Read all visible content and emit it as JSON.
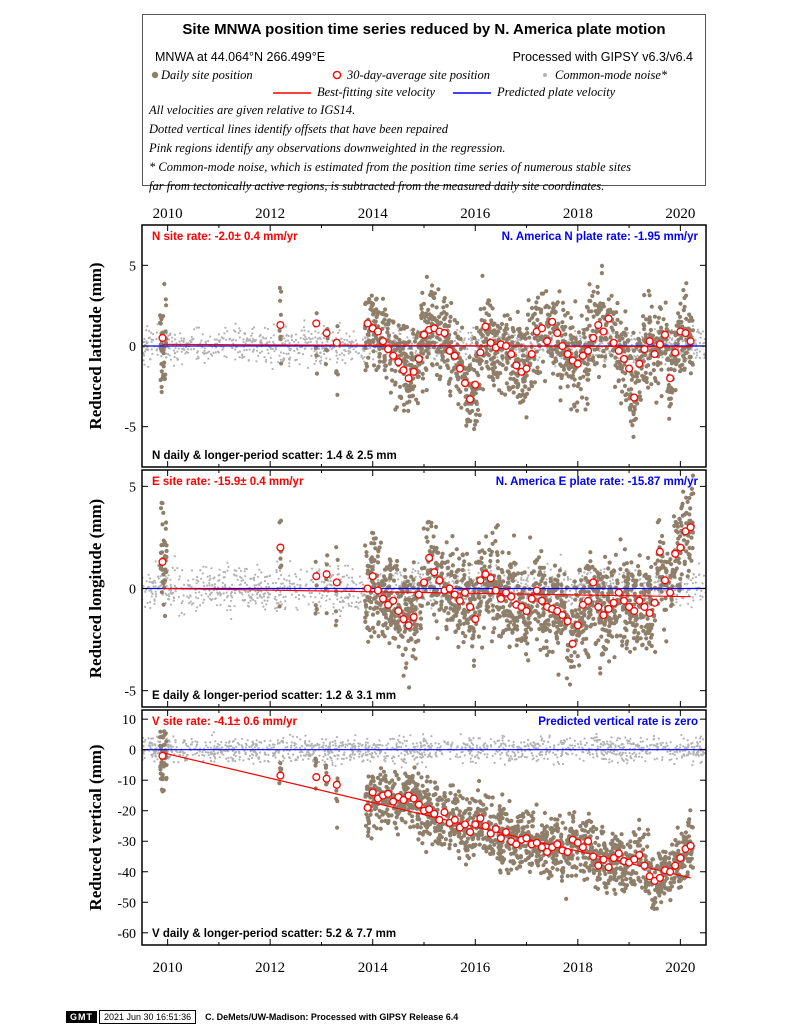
{
  "header": {
    "title": "Site MNWA position time series reduced by N. America plate motion",
    "site_location": "MNWA at 44.064°N 266.499°E",
    "processing": "Processed with GIPSY v6.3/v6.4"
  },
  "legend": {
    "daily": "Daily site position",
    "avg": "30-day-average site position",
    "noise": "Common-mode noise*",
    "fit": "Best-fitting site velocity",
    "predicted": "Predicted plate velocity"
  },
  "notes": [
    "All velocities are given relative to IGS14.",
    "Dotted vertical lines identify offsets that have been repaired",
    "Pink regions identify any observations downweighted in the regression.",
    "* Common-mode noise, which is estimated from the position time series of numerous stable sites",
    "far from tectonically active regions, is subtracted from the measured daily site coordinates."
  ],
  "colors": {
    "daily": "#8f7f6a",
    "noise": "#b3b3b3",
    "fit": "#ff0000",
    "predicted": "#0000ff",
    "avg_edge": "#ff0000"
  },
  "footer": {
    "logo": "GMT",
    "timestamp": "2021 Jun 30 16:51:36",
    "credit": "C. DeMets/UW-Madison: Processed with GIPSY Release 6.4"
  },
  "chart_data": [
    {
      "type": "scatter",
      "component": "N",
      "ylabel": "Reduced latitude (mm)",
      "xlim": [
        2009.5,
        2020.5
      ],
      "ylim": [
        -7.5,
        7.5
      ],
      "x_ticks": [
        2010,
        2012,
        2014,
        2016,
        2018,
        2020
      ],
      "y_ticks": [
        -5,
        0,
        5
      ],
      "site_rate": "N site rate:  -2.0± 0.4 mm/yr",
      "plate_rate": "N. America N plate rate: -1.95 mm/yr",
      "scatter": "N daily & longer-period scatter:   1.4 &   2.5 mm",
      "fit": {
        "x": [
          2009.9,
          2020.2
        ],
        "y": [
          0.1,
          -0.05
        ]
      },
      "predicted": {
        "y": 0
      },
      "daily_spread": 1.4,
      "averages": [
        [
          2009.9,
          0.5
        ],
        [
          2012.2,
          1.3
        ],
        [
          2012.9,
          1.4
        ],
        [
          2013.1,
          0.8
        ],
        [
          2013.3,
          0.2
        ],
        [
          2013.9,
          1.4
        ],
        [
          2014.0,
          1.1
        ],
        [
          2014.1,
          0.9
        ],
        [
          2014.2,
          0.3
        ],
        [
          2014.3,
          -0.2
        ],
        [
          2014.4,
          -0.6
        ],
        [
          2014.5,
          -1.0
        ],
        [
          2014.6,
          -1.5
        ],
        [
          2014.7,
          -2.0
        ],
        [
          2014.8,
          -1.6
        ],
        [
          2014.9,
          -0.8
        ],
        [
          2015.0,
          0.7
        ],
        [
          2015.1,
          1.0
        ],
        [
          2015.2,
          1.1
        ],
        [
          2015.3,
          0.9
        ],
        [
          2015.4,
          0.8
        ],
        [
          2015.5,
          -0.3
        ],
        [
          2015.6,
          -0.6
        ],
        [
          2015.7,
          -1.4
        ],
        [
          2015.8,
          -2.3
        ],
        [
          2015.9,
          -3.3
        ],
        [
          2016.0,
          -2.4
        ],
        [
          2016.1,
          -0.4
        ],
        [
          2016.2,
          1.2
        ],
        [
          2016.3,
          0.2
        ],
        [
          2016.4,
          -0.1
        ],
        [
          2016.5,
          0.1
        ],
        [
          2016.6,
          0.0
        ],
        [
          2016.7,
          -0.5
        ],
        [
          2016.8,
          -1.2
        ],
        [
          2016.9,
          -1.6
        ],
        [
          2017.0,
          -1.4
        ],
        [
          2017.1,
          -0.5
        ],
        [
          2017.2,
          0.9
        ],
        [
          2017.3,
          1.1
        ],
        [
          2017.4,
          0.3
        ],
        [
          2017.5,
          1.5
        ],
        [
          2017.6,
          0.8
        ],
        [
          2017.7,
          0.0
        ],
        [
          2017.8,
          -0.5
        ],
        [
          2017.9,
          -0.9
        ],
        [
          2018.0,
          -1.1
        ],
        [
          2018.1,
          -0.6
        ],
        [
          2018.2,
          -0.3
        ],
        [
          2018.3,
          0.5
        ],
        [
          2018.4,
          1.3
        ],
        [
          2018.5,
          0.9
        ],
        [
          2018.6,
          1.7
        ],
        [
          2018.7,
          0.2
        ],
        [
          2018.8,
          -0.3
        ],
        [
          2018.9,
          -0.8
        ],
        [
          2019.0,
          -1.4
        ],
        [
          2019.1,
          -3.2
        ],
        [
          2019.2,
          -1.1
        ],
        [
          2019.3,
          -0.2
        ],
        [
          2019.4,
          0.3
        ],
        [
          2019.5,
          -0.5
        ],
        [
          2019.6,
          0.1
        ],
        [
          2019.7,
          0.7
        ],
        [
          2019.8,
          -2.0
        ],
        [
          2019.9,
          -0.4
        ],
        [
          2020.0,
          0.9
        ],
        [
          2020.1,
          0.8
        ],
        [
          2020.2,
          0.3
        ]
      ]
    },
    {
      "type": "scatter",
      "component": "E",
      "ylabel": "Reduced longitude (mm)",
      "xlim": [
        2009.5,
        2020.5
      ],
      "ylim": [
        -5.8,
        5.8
      ],
      "x_ticks": [
        2010,
        2012,
        2014,
        2016,
        2018,
        2020
      ],
      "y_ticks": [
        -5,
        0,
        5
      ],
      "site_rate": "E site rate: -15.9± 0.4 mm/yr",
      "plate_rate": "N. America E plate rate: -15.87 mm/yr",
      "scatter": "E daily & longer-period scatter:   1.2 &   3.1 mm",
      "fit": {
        "x": [
          2009.9,
          2020.2
        ],
        "y": [
          0.0,
          -0.4
        ]
      },
      "predicted": {
        "y": 0
      },
      "daily_spread": 1.2,
      "averages": [
        [
          2009.9,
          1.3
        ],
        [
          2012.2,
          2.0
        ],
        [
          2012.9,
          0.6
        ],
        [
          2013.1,
          0.7
        ],
        [
          2013.3,
          0.3
        ],
        [
          2013.9,
          0.0
        ],
        [
          2014.0,
          0.6
        ],
        [
          2014.1,
          -0.1
        ],
        [
          2014.2,
          -0.5
        ],
        [
          2014.3,
          -0.8
        ],
        [
          2014.4,
          -0.6
        ],
        [
          2014.5,
          -1.1
        ],
        [
          2014.6,
          -1.5
        ],
        [
          2014.7,
          -1.8
        ],
        [
          2014.8,
          -1.4
        ],
        [
          2014.9,
          -0.3
        ],
        [
          2015.0,
          0.3
        ],
        [
          2015.1,
          1.5
        ],
        [
          2015.2,
          0.8
        ],
        [
          2015.3,
          0.4
        ],
        [
          2015.4,
          -0.1
        ],
        [
          2015.5,
          0.0
        ],
        [
          2015.6,
          -0.3
        ],
        [
          2015.7,
          -0.6
        ],
        [
          2015.8,
          -0.2
        ],
        [
          2015.9,
          -0.9
        ],
        [
          2016.0,
          -1.5
        ],
        [
          2016.1,
          0.4
        ],
        [
          2016.2,
          0.7
        ],
        [
          2016.3,
          0.5
        ],
        [
          2016.4,
          -0.1
        ],
        [
          2016.5,
          -0.5
        ],
        [
          2016.6,
          -0.2
        ],
        [
          2016.7,
          -0.4
        ],
        [
          2016.8,
          -0.8
        ],
        [
          2016.9,
          -0.9
        ],
        [
          2017.0,
          -1.1
        ],
        [
          2017.1,
          -0.5
        ],
        [
          2017.2,
          -0.1
        ],
        [
          2017.3,
          -0.6
        ],
        [
          2017.4,
          -0.9
        ],
        [
          2017.5,
          -1.0
        ],
        [
          2017.6,
          -1.1
        ],
        [
          2017.7,
          -1.3
        ],
        [
          2017.8,
          -1.6
        ],
        [
          2017.9,
          -2.7
        ],
        [
          2018.0,
          -1.8
        ],
        [
          2018.1,
          -0.8
        ],
        [
          2018.2,
          -0.6
        ],
        [
          2018.3,
          0.3
        ],
        [
          2018.4,
          -0.9
        ],
        [
          2018.5,
          -1.3
        ],
        [
          2018.6,
          -1.0
        ],
        [
          2018.7,
          -0.7
        ],
        [
          2018.8,
          -0.2
        ],
        [
          2018.9,
          -0.6
        ],
        [
          2019.0,
          -0.9
        ],
        [
          2019.1,
          -1.1
        ],
        [
          2019.2,
          -0.6
        ],
        [
          2019.3,
          -0.9
        ],
        [
          2019.4,
          -1.2
        ],
        [
          2019.5,
          -0.7
        ],
        [
          2019.6,
          1.8
        ],
        [
          2019.7,
          0.4
        ],
        [
          2019.8,
          -0.2
        ],
        [
          2019.9,
          1.7
        ],
        [
          2020.0,
          2.0
        ],
        [
          2020.1,
          2.8
        ],
        [
          2020.2,
          3.0
        ]
      ]
    },
    {
      "type": "scatter",
      "component": "V",
      "ylabel": "Reduced vertical (mm)",
      "xlim": [
        2009.5,
        2020.5
      ],
      "ylim": [
        -64,
        13
      ],
      "x_ticks": [
        2010,
        2012,
        2014,
        2016,
        2018,
        2020
      ],
      "y_ticks": [
        -60,
        -50,
        -40,
        -30,
        -20,
        -10,
        0,
        10
      ],
      "site_rate": "V site rate:  -4.1± 0.6 mm/yr",
      "plate_rate": "Predicted vertical rate is zero",
      "scatter": "V daily & longer-period scatter:   5.2 &   7.7 mm",
      "fit": {
        "x": [
          2009.9,
          2020.2
        ],
        "y": [
          -1.0,
          -42.0
        ]
      },
      "predicted": {
        "y": 0
      },
      "daily_spread": 5.2,
      "averages": [
        [
          2009.9,
          -2.0
        ],
        [
          2012.2,
          -8.5
        ],
        [
          2012.9,
          -9.0
        ],
        [
          2013.1,
          -9.5
        ],
        [
          2013.3,
          -11.5
        ],
        [
          2013.9,
          -19.0
        ],
        [
          2014.0,
          -14.0
        ],
        [
          2014.1,
          -16.0
        ],
        [
          2014.2,
          -15.0
        ],
        [
          2014.3,
          -14.5
        ],
        [
          2014.4,
          -17.0
        ],
        [
          2014.5,
          -15.5
        ],
        [
          2014.6,
          -16.5
        ],
        [
          2014.7,
          -15.0
        ],
        [
          2014.8,
          -16.0
        ],
        [
          2014.9,
          -18.0
        ],
        [
          2015.0,
          -20.0
        ],
        [
          2015.1,
          -19.5
        ],
        [
          2015.2,
          -21.0
        ],
        [
          2015.3,
          -23.0
        ],
        [
          2015.4,
          -20.5
        ],
        [
          2015.5,
          -24.0
        ],
        [
          2015.6,
          -23.0
        ],
        [
          2015.7,
          -25.5
        ],
        [
          2015.8,
          -24.5
        ],
        [
          2015.9,
          -27.0
        ],
        [
          2016.0,
          -24.5
        ],
        [
          2016.1,
          -22.5
        ],
        [
          2016.2,
          -25.0
        ],
        [
          2016.3,
          -27.5
        ],
        [
          2016.4,
          -26.0
        ],
        [
          2016.5,
          -29.0
        ],
        [
          2016.6,
          -27.0
        ],
        [
          2016.7,
          -30.0
        ],
        [
          2016.8,
          -31.0
        ],
        [
          2016.9,
          -29.5
        ],
        [
          2017.0,
          -29.0
        ],
        [
          2017.1,
          -31.0
        ],
        [
          2017.2,
          -30.5
        ],
        [
          2017.3,
          -32.0
        ],
        [
          2017.4,
          -33.5
        ],
        [
          2017.5,
          -32.0
        ],
        [
          2017.6,
          -31.0
        ],
        [
          2017.7,
          -33.0
        ],
        [
          2017.8,
          -33.5
        ],
        [
          2017.9,
          -29.5
        ],
        [
          2018.0,
          -30.5
        ],
        [
          2018.1,
          -32.0
        ],
        [
          2018.2,
          -30.0
        ],
        [
          2018.3,
          -35.0
        ],
        [
          2018.4,
          -38.0
        ],
        [
          2018.5,
          -36.0
        ],
        [
          2018.6,
          -38.5
        ],
        [
          2018.7,
          -35.5
        ],
        [
          2018.8,
          -34.0
        ],
        [
          2018.9,
          -36.5
        ],
        [
          2019.0,
          -37.0
        ],
        [
          2019.1,
          -36.0
        ],
        [
          2019.2,
          -34.5
        ],
        [
          2019.3,
          -38.0
        ],
        [
          2019.4,
          -41.5
        ],
        [
          2019.5,
          -43.0
        ],
        [
          2019.6,
          -42.0
        ],
        [
          2019.7,
          -39.5
        ],
        [
          2019.8,
          -40.0
        ],
        [
          2019.9,
          -38.0
        ],
        [
          2020.0,
          -35.5
        ],
        [
          2020.1,
          -32.5
        ],
        [
          2020.2,
          -31.5
        ]
      ]
    }
  ]
}
